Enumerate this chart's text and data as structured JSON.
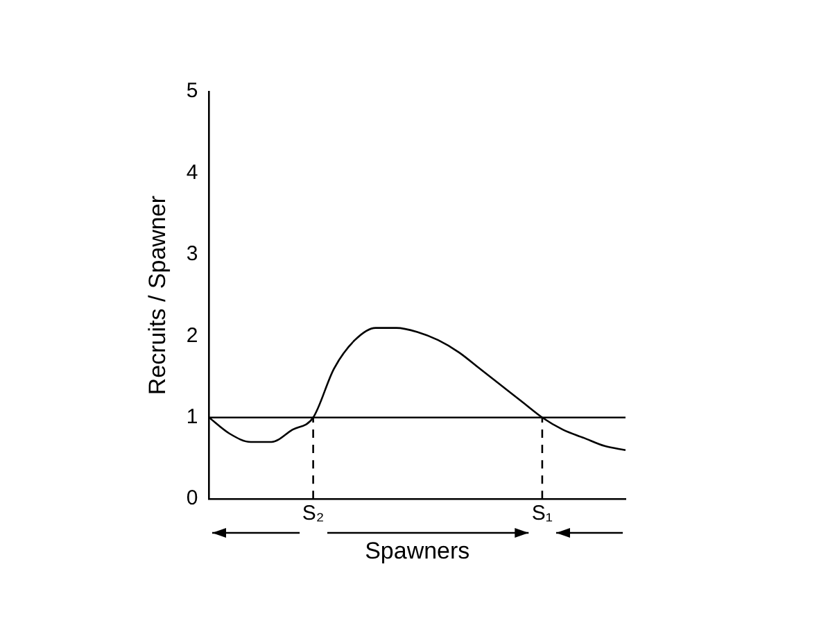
{
  "chart_data": {
    "type": "line",
    "xlabel": "Spawners",
    "ylabel": "Recruits / Spawner",
    "categories": [
      null,
      null,
      null,
      null,
      null,
      "S₂",
      null,
      null,
      null,
      null,
      null,
      null,
      null,
      null,
      null,
      null,
      "S₁",
      null,
      null,
      null,
      null
    ],
    "series": [
      {
        "color": "#000000",
        "values": [
          1.0,
          0.8,
          0.7,
          0.7,
          0.85,
          1.0,
          1.6,
          1.95,
          2.1,
          2.1,
          2.05,
          1.95,
          1.8,
          1.6,
          1.4,
          1.2,
          1.0,
          0.85,
          0.75,
          0.65,
          0.6
        ]
      },
      {
        "type": "line",
        "color": "#000000",
        "line_style": "dashed",
        "x": [
          "S₂",
          "S₂"
        ],
        "values": [
          0,
          1
        ]
      },
      {
        "type": "line",
        "color": "#000000",
        "line_style": "dashed",
        "x": [
          "S₁",
          "S₁"
        ],
        "values": [
          0,
          1
        ]
      }
    ],
    "ylim": [
      0,
      5
    ],
    "yticks": [
      0,
      1,
      2,
      3,
      4,
      5
    ],
    "grid": false,
    "legend": false,
    "marker": "none",
    "ref_lines": [
      {
        "axis": "y",
        "value": 1,
        "color": "#000000",
        "line_style": "solid"
      }
    ]
  }
}
